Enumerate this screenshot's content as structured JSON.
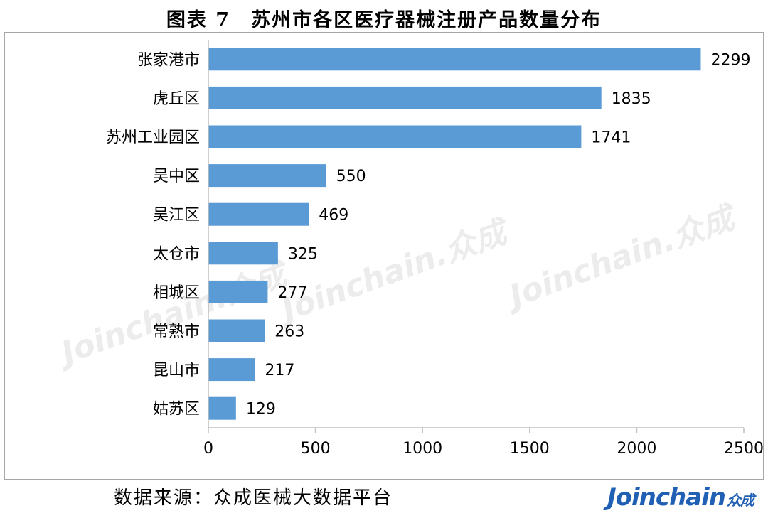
{
  "title": "图表 7　苏州市各区医疗器械注册产品数量分布",
  "source": "数据来源：众成医械大数据平台",
  "brand": {
    "name": "Joinchain",
    "cn": "众成"
  },
  "watermark": "Joinchain.众成",
  "colors": {
    "bar": "#5b9bd5",
    "axis": "#bfbfbf",
    "text": "#000000"
  },
  "chart_data": {
    "type": "bar",
    "orientation": "horizontal",
    "categories": [
      "张家港市",
      "虎丘区",
      "苏州工业园区",
      "吴中区",
      "吴江区",
      "太仓市",
      "相城区",
      "常熟市",
      "昆山市",
      "姑苏区"
    ],
    "values": [
      2299,
      1835,
      1741,
      550,
      469,
      325,
      277,
      263,
      217,
      129
    ],
    "xlim": [
      0,
      2500
    ],
    "xticks": [
      0,
      500,
      1000,
      1500,
      2000,
      2500
    ],
    "grid": false,
    "legend": "none"
  }
}
